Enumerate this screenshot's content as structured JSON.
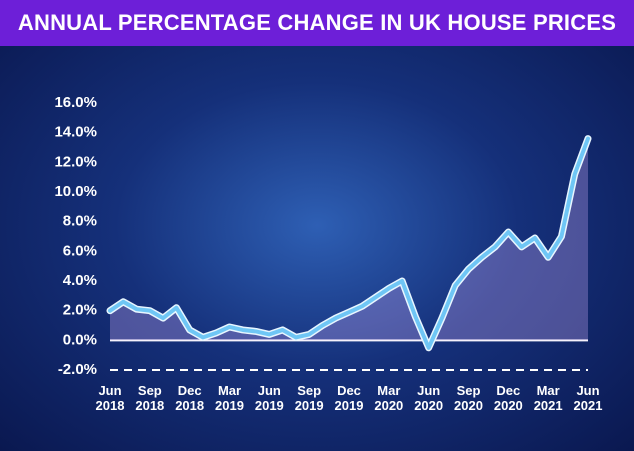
{
  "chart_data": {
    "type": "line",
    "title": "ANNUAL PERCENTAGE CHANGE IN UK HOUSE PRICES",
    "categories": [
      "Jun 2018",
      null,
      null,
      "Sep 2018",
      null,
      null,
      "Dec 2018",
      null,
      null,
      "Mar 2019",
      null,
      null,
      "Jun 2019",
      null,
      null,
      "Sep 2019",
      null,
      null,
      "Dec 2019",
      null,
      null,
      "Mar 2020",
      null,
      null,
      "Jun 2020",
      null,
      null,
      "Sep 2020",
      null,
      null,
      "Dec 2020",
      null,
      null,
      "Mar 2021",
      null,
      null,
      "Jun 2021"
    ],
    "series": [
      {
        "color": "#6fc6f5",
        "values": [
          2.0,
          2.6,
          2.1,
          2.0,
          1.5,
          2.2,
          0.7,
          0.2,
          0.5,
          0.9,
          0.7,
          0.6,
          0.4,
          0.7,
          0.2,
          0.4,
          1.0,
          1.5,
          1.9,
          2.3,
          2.9,
          3.5,
          4.0,
          1.6,
          -0.5,
          1.5,
          3.7,
          4.8,
          5.6,
          6.3,
          7.3,
          6.3,
          6.9,
          5.6,
          7.0,
          11.2,
          13.6
        ]
      }
    ],
    "ylim": [
      -2,
      16
    ],
    "yticks": [
      {
        "value": -2,
        "label": "-2.0%"
      },
      {
        "value": 0,
        "label": "0.0%"
      },
      {
        "value": 2,
        "label": "2.0%"
      },
      {
        "value": 4,
        "label": "4.0%"
      },
      {
        "value": 6,
        "label": "6.0%"
      },
      {
        "value": 8,
        "label": "8.0%"
      },
      {
        "value": 10,
        "label": "10.0%"
      },
      {
        "value": 12,
        "label": "12.0%"
      },
      {
        "value": 14,
        "label": "14.0%"
      },
      {
        "value": 16,
        "label": "16.0%"
      }
    ]
  }
}
